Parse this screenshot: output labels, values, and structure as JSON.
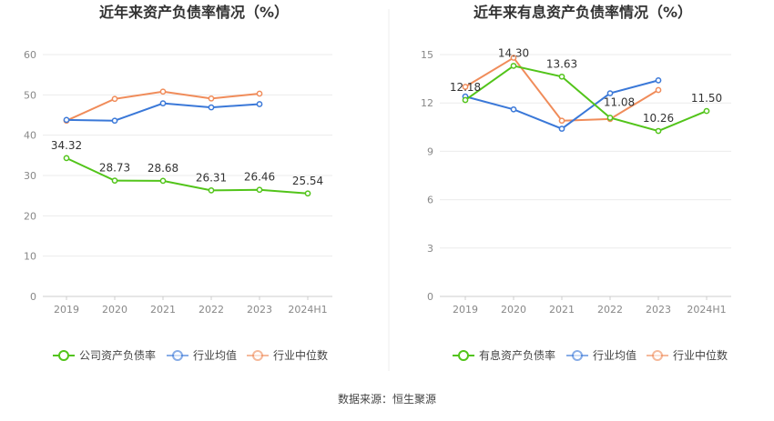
{
  "source_label": "数据来源：恒生聚源",
  "chart_data": [
    {
      "type": "line",
      "title": "近年来资产负债率情况（%）",
      "categories": [
        "2019",
        "2020",
        "2021",
        "2022",
        "2023",
        "2024H1"
      ],
      "ylim": [
        0,
        60
      ],
      "yticks": [
        0,
        10,
        20,
        30,
        40,
        50,
        60
      ],
      "grid": true,
      "legend_position": "bottom",
      "series": [
        {
          "name": "公司资产负债率",
          "color": "#52c41a",
          "values": [
            34.32,
            28.73,
            28.68,
            26.31,
            26.46,
            25.54
          ],
          "labels": [
            "34.32",
            "28.73",
            "28.68",
            "26.31",
            "26.46",
            "25.54"
          ]
        },
        {
          "name": "行业均值",
          "color": "#3a78d8",
          "values": [
            43.8,
            43.6,
            47.9,
            46.9,
            47.7,
            null
          ]
        },
        {
          "name": "行业中位数",
          "color": "#f08c5a",
          "values": [
            43.6,
            49.0,
            50.8,
            49.1,
            50.3,
            null
          ]
        }
      ]
    },
    {
      "type": "line",
      "title": "近年来有息资产负债率情况（%）",
      "categories": [
        "2019",
        "2020",
        "2021",
        "2022",
        "2023",
        "2024H1"
      ],
      "ylim": [
        0,
        15
      ],
      "yticks": [
        0,
        3,
        6,
        9,
        12,
        15
      ],
      "grid": true,
      "legend_position": "bottom",
      "series": [
        {
          "name": "有息资产负债率",
          "color": "#52c41a",
          "values": [
            12.18,
            14.3,
            13.63,
            11.08,
            10.26,
            11.5
          ],
          "labels": [
            "12.18",
            "14.30",
            "13.63",
            "11.08",
            "10.26",
            "11.50"
          ]
        },
        {
          "name": "行业均值",
          "color": "#3a78d8",
          "values": [
            12.4,
            11.6,
            10.4,
            12.6,
            13.4,
            null
          ]
        },
        {
          "name": "行业中位数",
          "color": "#f08c5a",
          "values": [
            13.0,
            14.8,
            10.9,
            11.0,
            12.8,
            null
          ]
        }
      ]
    }
  ]
}
